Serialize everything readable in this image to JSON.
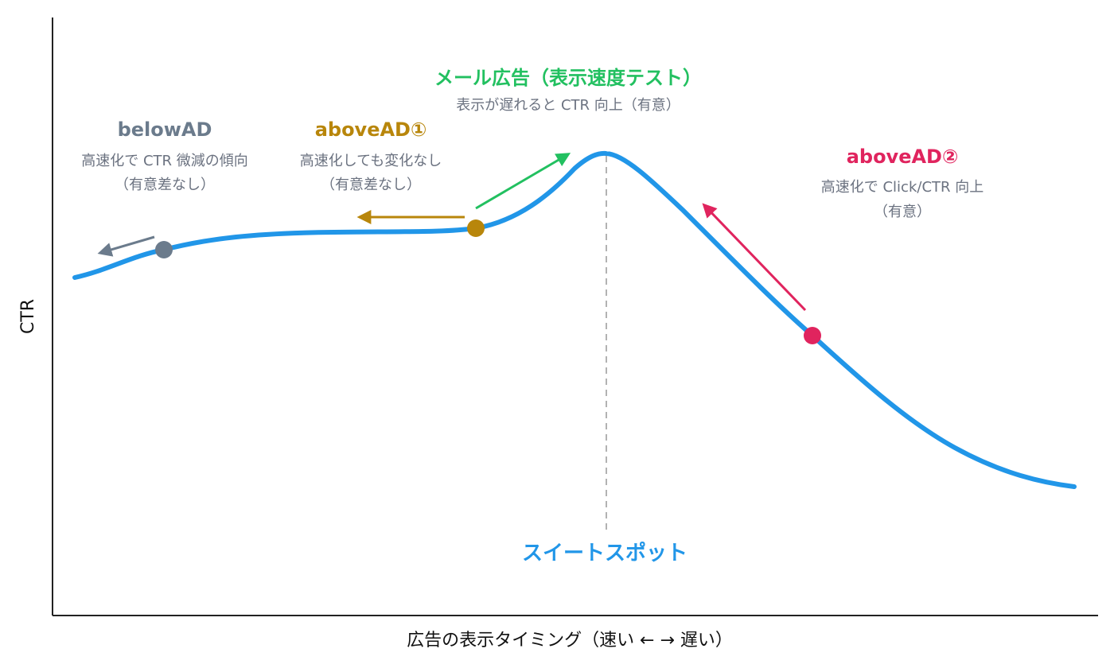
{
  "colors": {
    "curve": "#2196e8",
    "axis": "#222222",
    "guide": "#999999",
    "belowAD": "#6b7b8c",
    "aboveAD1": "#b8860b",
    "mail": "#22c060",
    "aboveAD2": "#e0245e",
    "sweet_spot": "#2196e8",
    "desc_text": "#6b7280"
  },
  "axes": {
    "y_label": "CTR",
    "x_label": "広告の表示タイミング（速い ← → 遅い）"
  },
  "annotations": {
    "belowAD": {
      "title": "belowAD",
      "line1": "高速化で CTR 微減の傾向",
      "line2": "（有意差なし）"
    },
    "aboveAD1": {
      "title": "aboveAD①",
      "line1": "高速化しても変化なし",
      "line2": "（有意差なし）"
    },
    "mail": {
      "title": "メール広告（表示速度テスト）",
      "line1": "表示が遅れると CTR 向上（有意）"
    },
    "aboveAD2": {
      "title": "aboveAD②",
      "line1": "高速化で Click/CTR 向上",
      "line2": "（有意）"
    }
  },
  "sweet_spot_label": "スイートスポット"
}
